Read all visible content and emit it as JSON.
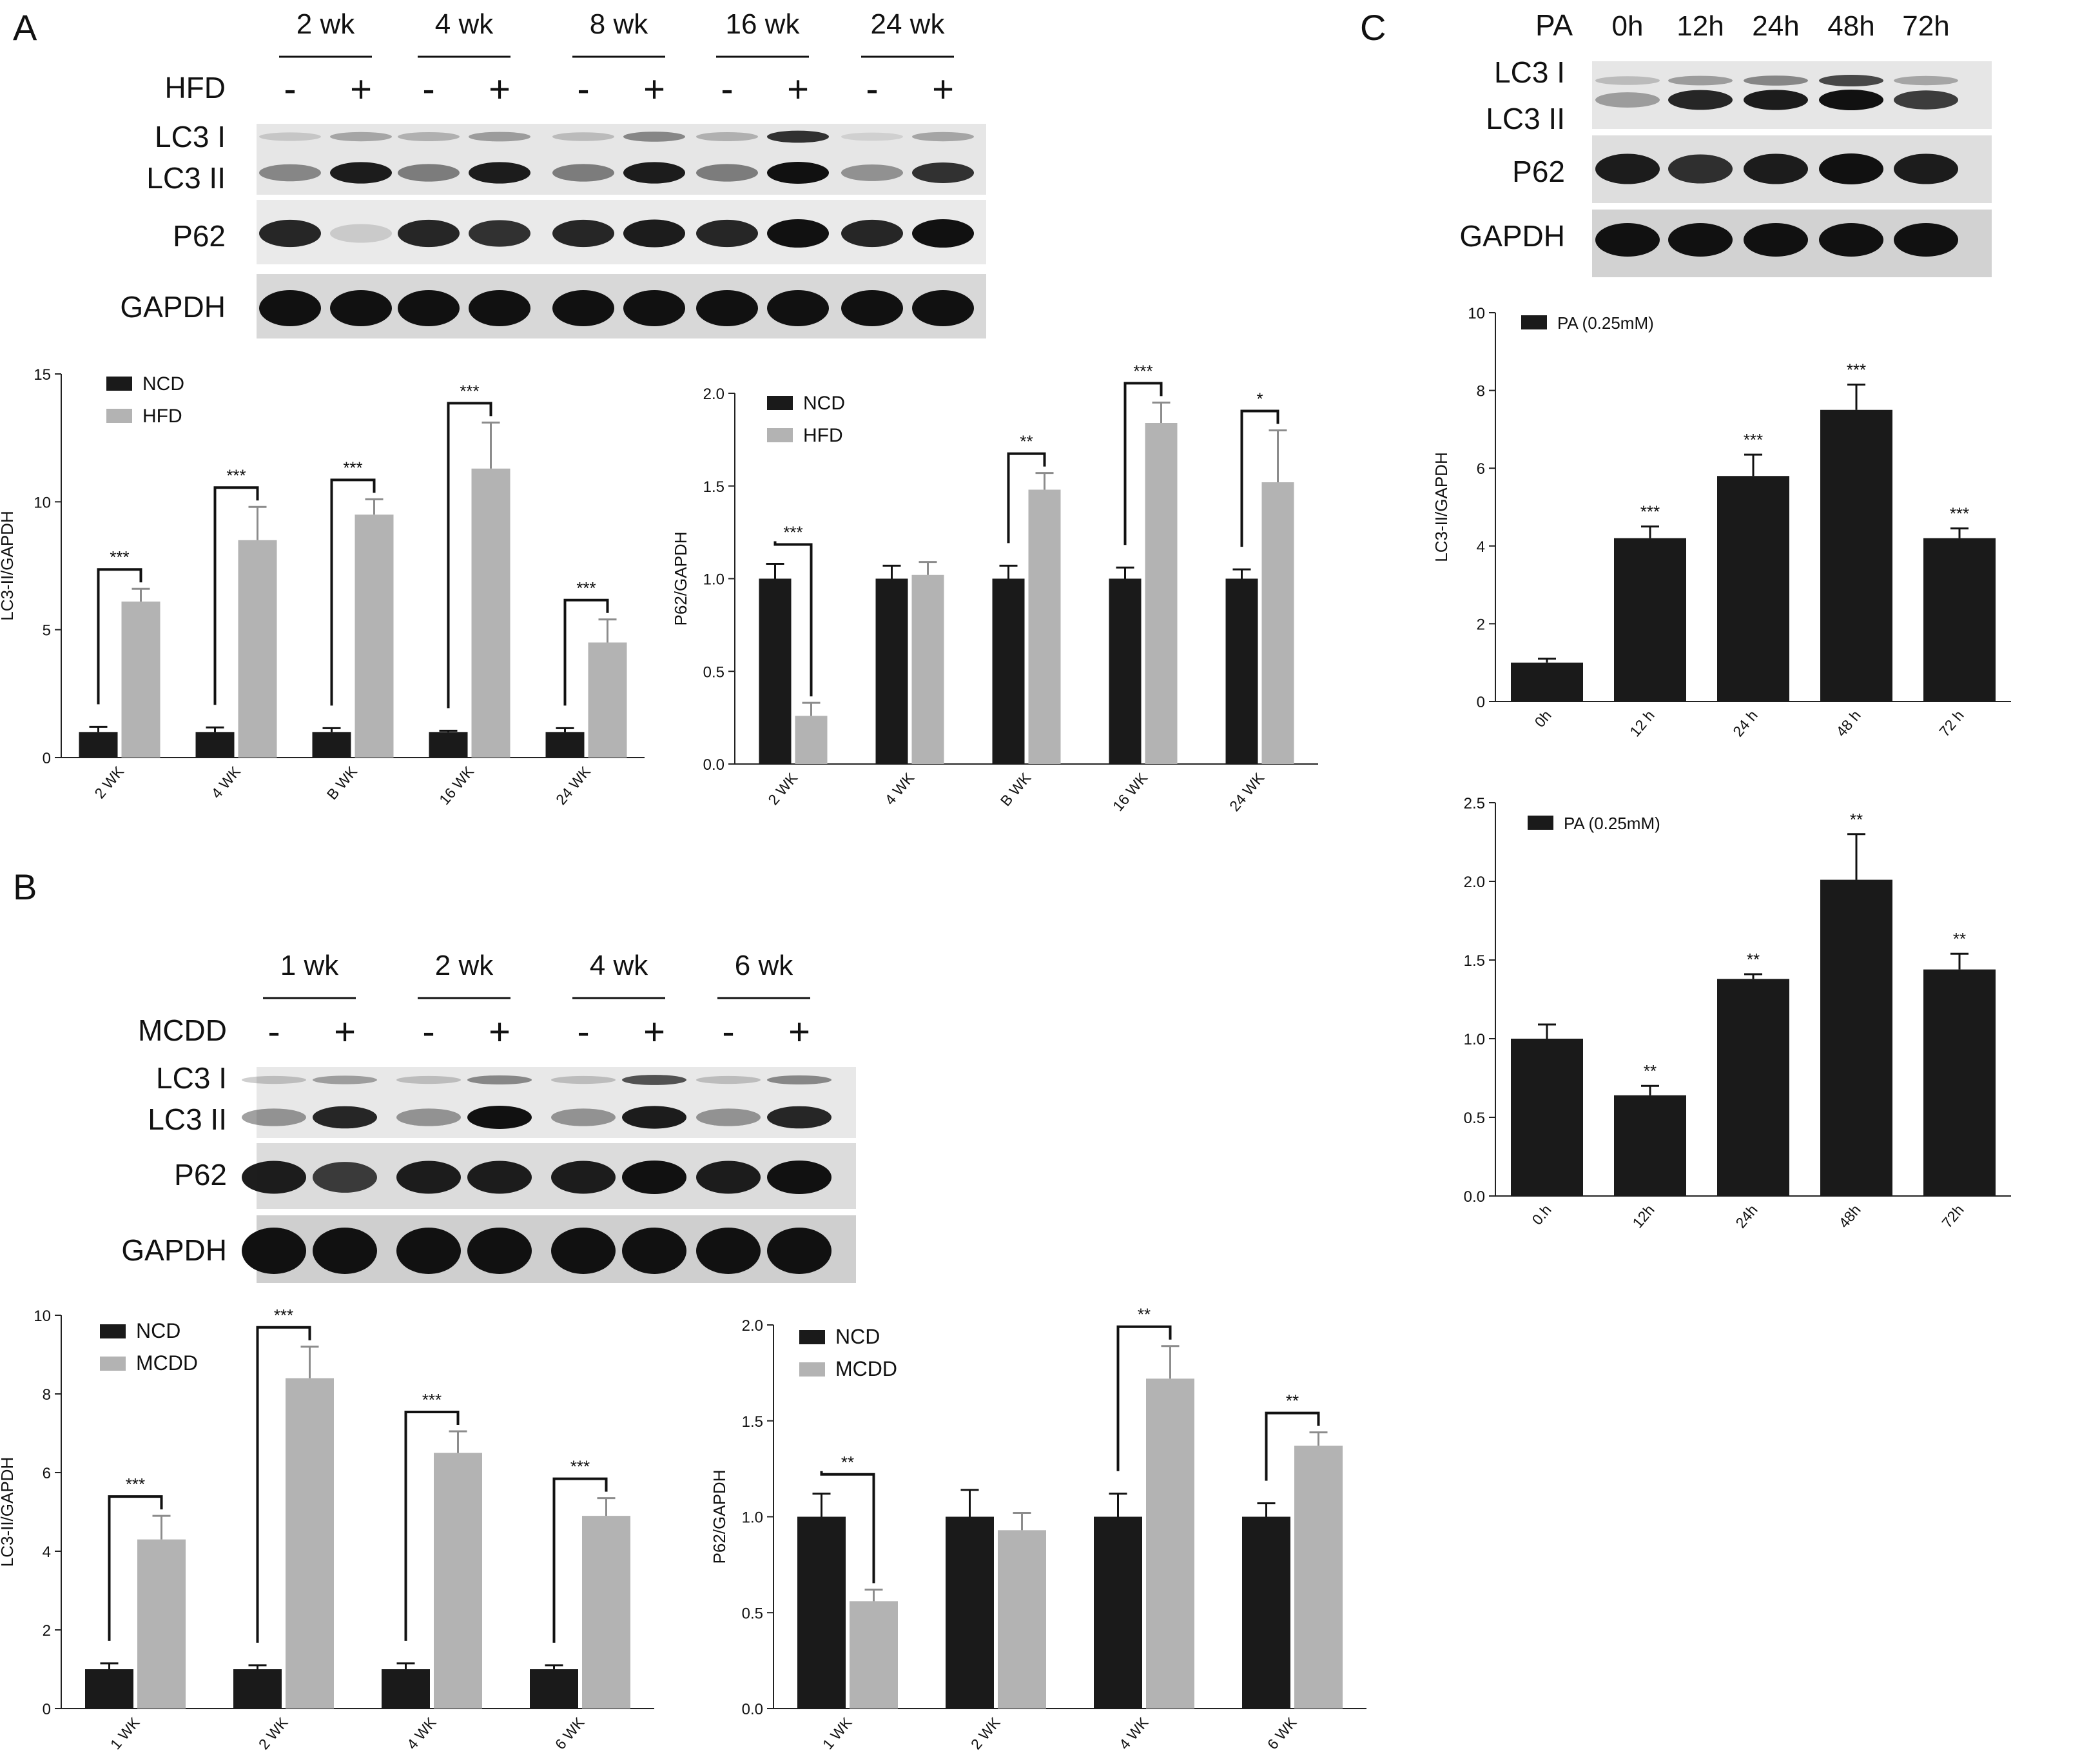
{
  "panels": {
    "A": {
      "label": "A",
      "timepoints": [
        "2 wk",
        "4 wk",
        "8 wk",
        "16 wk",
        "24 wk"
      ],
      "treatment": "HFD",
      "signs": [
        "-",
        "+"
      ],
      "rows": [
        "LC3 I",
        "LC3 II",
        "P62",
        "GAPDH"
      ]
    },
    "B": {
      "label": "B",
      "timepoints": [
        "1 wk",
        "2 wk",
        "4 wk",
        "6 wk"
      ],
      "treatment": "MCDD",
      "signs": [
        "-",
        "+"
      ],
      "rows": [
        "LC3 I",
        "LC3 II",
        "P62",
        "GAPDH"
      ]
    },
    "C": {
      "label": "C",
      "treatment": "PA",
      "timepoints": [
        "0h",
        "12h",
        "24h",
        "48h",
        "72h"
      ],
      "rows": [
        "LC3 I",
        "LC3 II",
        "P62",
        "GAPDH"
      ]
    }
  },
  "chart_data": [
    {
      "id": "A-lc3",
      "type": "bar",
      "categories": [
        "2 WK",
        "4 WK",
        "B WK",
        "16 WK",
        "24 WK"
      ],
      "series": [
        {
          "name": "NCD",
          "color": "#1a1a1a",
          "values": [
            1.0,
            1.0,
            1.0,
            1.0,
            1.0
          ],
          "errors": [
            0.2,
            0.18,
            0.15,
            0.05,
            0.15
          ]
        },
        {
          "name": "HFD",
          "color": "#b3b3b3",
          "values": [
            6.1,
            8.5,
            9.5,
            11.3,
            4.5
          ],
          "errors": [
            0.5,
            1.3,
            0.6,
            1.8,
            0.9
          ]
        }
      ],
      "significance": [
        "***",
        "***",
        "***",
        "***",
        "***"
      ],
      "ylabel": "LC3-II/GAPDH",
      "ylim": [
        0,
        15
      ],
      "yticks": [
        "0",
        "5",
        "10",
        "15"
      ],
      "legend": "top-left"
    },
    {
      "id": "A-p62",
      "type": "bar",
      "categories": [
        "2 WK",
        "4 WK",
        "B WK",
        "16 WK",
        "24 WK"
      ],
      "series": [
        {
          "name": "NCD",
          "color": "#1a1a1a",
          "values": [
            1.0,
            1.0,
            1.0,
            1.0,
            1.0
          ],
          "errors": [
            0.08,
            0.07,
            0.07,
            0.06,
            0.05
          ]
        },
        {
          "name": "HFD",
          "color": "#b3b3b3",
          "values": [
            0.26,
            1.02,
            1.48,
            1.84,
            1.52
          ],
          "errors": [
            0.07,
            0.07,
            0.09,
            0.11,
            0.28
          ]
        }
      ],
      "significance": [
        "***",
        "",
        "**",
        "***",
        "*"
      ],
      "ylabel": "P62/GAPDH",
      "ylim": [
        0,
        2.0
      ],
      "yticks": [
        "0.0",
        "0.5",
        "1.0",
        "1.5",
        "2.0"
      ],
      "legend": "top-left"
    },
    {
      "id": "B-lc3",
      "type": "bar",
      "categories": [
        "1 WK",
        "2 WK",
        "4 WK",
        "6 WK"
      ],
      "series": [
        {
          "name": "NCD",
          "color": "#1a1a1a",
          "values": [
            1.0,
            1.0,
            1.0,
            1.0
          ],
          "errors": [
            0.15,
            0.1,
            0.15,
            0.1
          ]
        },
        {
          "name": "MCDD",
          "color": "#b3b3b3",
          "values": [
            4.3,
            8.4,
            6.5,
            4.9
          ],
          "errors": [
            0.6,
            0.8,
            0.55,
            0.45
          ]
        }
      ],
      "significance": [
        "***",
        "***",
        "***",
        "***"
      ],
      "ylabel": "LC3-II/GAPDH",
      "ylim": [
        0,
        10
      ],
      "yticks": [
        "0",
        "2",
        "4",
        "6",
        "8",
        "10"
      ],
      "legend": "top-left"
    },
    {
      "id": "B-p62",
      "type": "bar",
      "categories": [
        "1 WK",
        "2 WK",
        "4 WK",
        "6 WK"
      ],
      "series": [
        {
          "name": "NCD",
          "color": "#1a1a1a",
          "values": [
            1.0,
            1.0,
            1.0,
            1.0
          ],
          "errors": [
            0.12,
            0.14,
            0.12,
            0.07
          ]
        },
        {
          "name": "MCDD",
          "color": "#b3b3b3",
          "values": [
            0.56,
            0.93,
            1.72,
            1.37
          ],
          "errors": [
            0.06,
            0.09,
            0.17,
            0.07
          ]
        }
      ],
      "significance": [
        "**",
        "",
        "**",
        "**"
      ],
      "ylabel": "P62/GAPDH",
      "ylim": [
        0,
        2.0
      ],
      "yticks": [
        "0.0",
        "0.5",
        "1.0",
        "1.5",
        "2.0"
      ],
      "legend": "top-left"
    },
    {
      "id": "C-lc3",
      "type": "bar",
      "categories": [
        "0h",
        "12 h",
        "24 h",
        "48 h",
        "72 h"
      ],
      "series": [
        {
          "name": "PA (0.25mM)",
          "color": "#1a1a1a",
          "values": [
            1.0,
            4.2,
            5.8,
            7.5,
            4.2
          ],
          "errors": [
            0.1,
            0.3,
            0.55,
            0.65,
            0.25
          ]
        }
      ],
      "significance": [
        "",
        "***",
        "***",
        "***",
        "***"
      ],
      "ylabel": "LC3-II/GAPDH",
      "ylim": [
        0,
        10
      ],
      "yticks": [
        "0",
        "2",
        "4",
        "6",
        "8",
        "10"
      ],
      "legend": "top-left"
    },
    {
      "id": "C-p62",
      "type": "bar",
      "categories": [
        "0.h",
        "12h",
        "24h",
        "48h",
        "72h"
      ],
      "series": [
        {
          "name": "PA (0.25mM)",
          "color": "#1a1a1a",
          "values": [
            1.0,
            0.64,
            1.38,
            2.01,
            1.44
          ],
          "errors": [
            0.09,
            0.06,
            0.03,
            0.29,
            0.1
          ]
        }
      ],
      "significance": [
        "",
        "**",
        "**",
        "**",
        "**"
      ],
      "ylabel": "",
      "ylim": [
        0,
        2.5
      ],
      "yticks": [
        "0.0",
        "0.5",
        "1.0",
        "1.5",
        "2.0",
        "2.5"
      ],
      "legend": "top-left"
    }
  ]
}
